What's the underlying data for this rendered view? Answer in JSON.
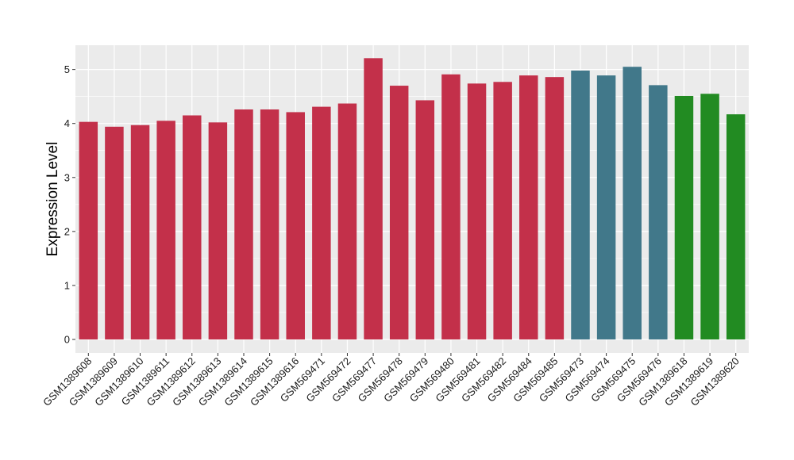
{
  "chart_data": {
    "type": "bar",
    "title": "",
    "xlabel": "",
    "ylabel": "Expression Level",
    "ylim": [
      -0.25,
      5.45
    ],
    "yticks": [
      0,
      1,
      2,
      3,
      4,
      5
    ],
    "grid": true,
    "legend": "none",
    "panel_background": "#ebebeb",
    "gridline_color": "#ffffff",
    "categories": [
      "GSM1389608",
      "GSM1389609",
      "GSM1389610",
      "GSM1389611",
      "GSM1389612",
      "GSM1389613",
      "GSM1389614",
      "GSM1389615",
      "GSM1389616",
      "GSM569471",
      "GSM569472",
      "GSM569477",
      "GSM569478",
      "GSM569479",
      "GSM569480",
      "GSM569481",
      "GSM569482",
      "GSM569484",
      "GSM569485",
      "GSM569473",
      "GSM569474",
      "GSM569475",
      "GSM569476",
      "GSM1389618",
      "GSM1389619",
      "GSM1389620"
    ],
    "values": [
      4.03,
      3.94,
      3.97,
      4.05,
      4.15,
      4.02,
      4.26,
      4.26,
      4.21,
      4.31,
      4.37,
      5.21,
      4.7,
      4.43,
      4.91,
      4.74,
      4.77,
      4.89,
      4.86,
      4.98,
      4.89,
      5.05,
      4.71,
      4.51,
      4.55,
      4.17
    ],
    "colors": [
      "#c3304a",
      "#c3304a",
      "#c3304a",
      "#c3304a",
      "#c3304a",
      "#c3304a",
      "#c3304a",
      "#c3304a",
      "#c3304a",
      "#c3304a",
      "#c3304a",
      "#c3304a",
      "#c3304a",
      "#c3304a",
      "#c3304a",
      "#c3304a",
      "#c3304a",
      "#c3304a",
      "#c3304a",
      "#41788a",
      "#41788a",
      "#41788a",
      "#41788a",
      "#228b22",
      "#228b22",
      "#228b22"
    ]
  }
}
